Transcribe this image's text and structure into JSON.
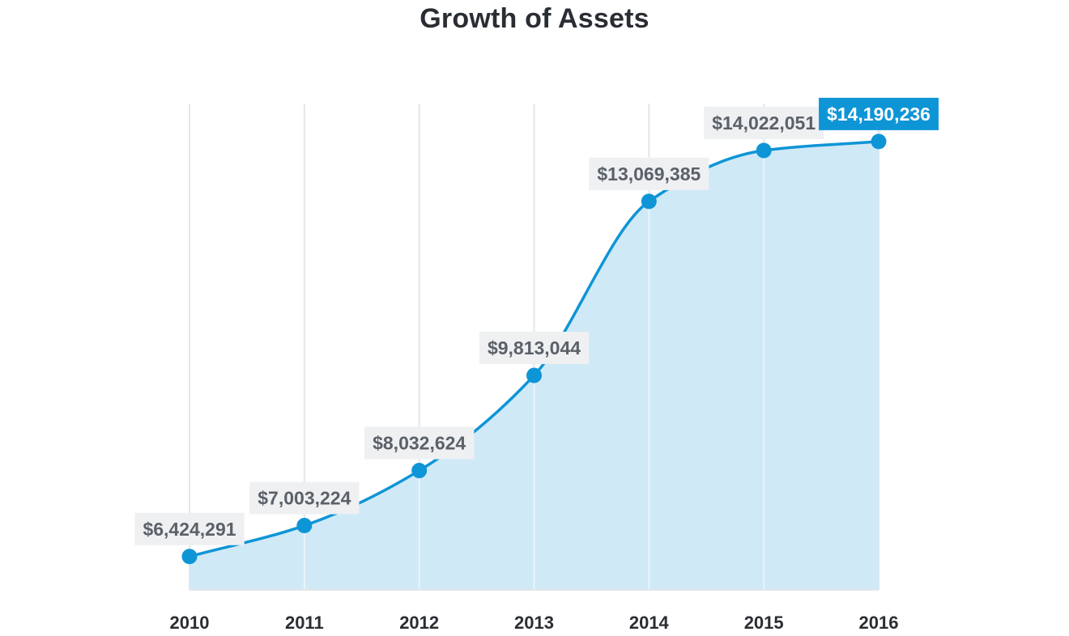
{
  "chart_data": {
    "type": "area",
    "title": "Growth of Assets",
    "xlabel": "",
    "ylabel": "",
    "categories": [
      "2010",
      "2011",
      "2012",
      "2013",
      "2014",
      "2015",
      "2016"
    ],
    "values": [
      6424291,
      7003224,
      8032624,
      9813044,
      13069385,
      14022051,
      14190236
    ],
    "data_labels": [
      "$6,424,291",
      "$7,003,224",
      "$8,032,624",
      "$9,813,044",
      "$13,069,385",
      "$14,022,051",
      "$14,190,236"
    ],
    "highlighted_index": 6,
    "ylim": [
      5800000,
      14900000
    ],
    "grid": "vertical",
    "legend": "none",
    "colors": {
      "line": "#0e95d6",
      "fill": "#d0e9f7",
      "grid": "#e4e6e8",
      "label_bg": "#eef0f2",
      "label_text": "#5b6168",
      "highlight_bg": "#0e95d6",
      "highlight_text": "#ffffff"
    }
  }
}
